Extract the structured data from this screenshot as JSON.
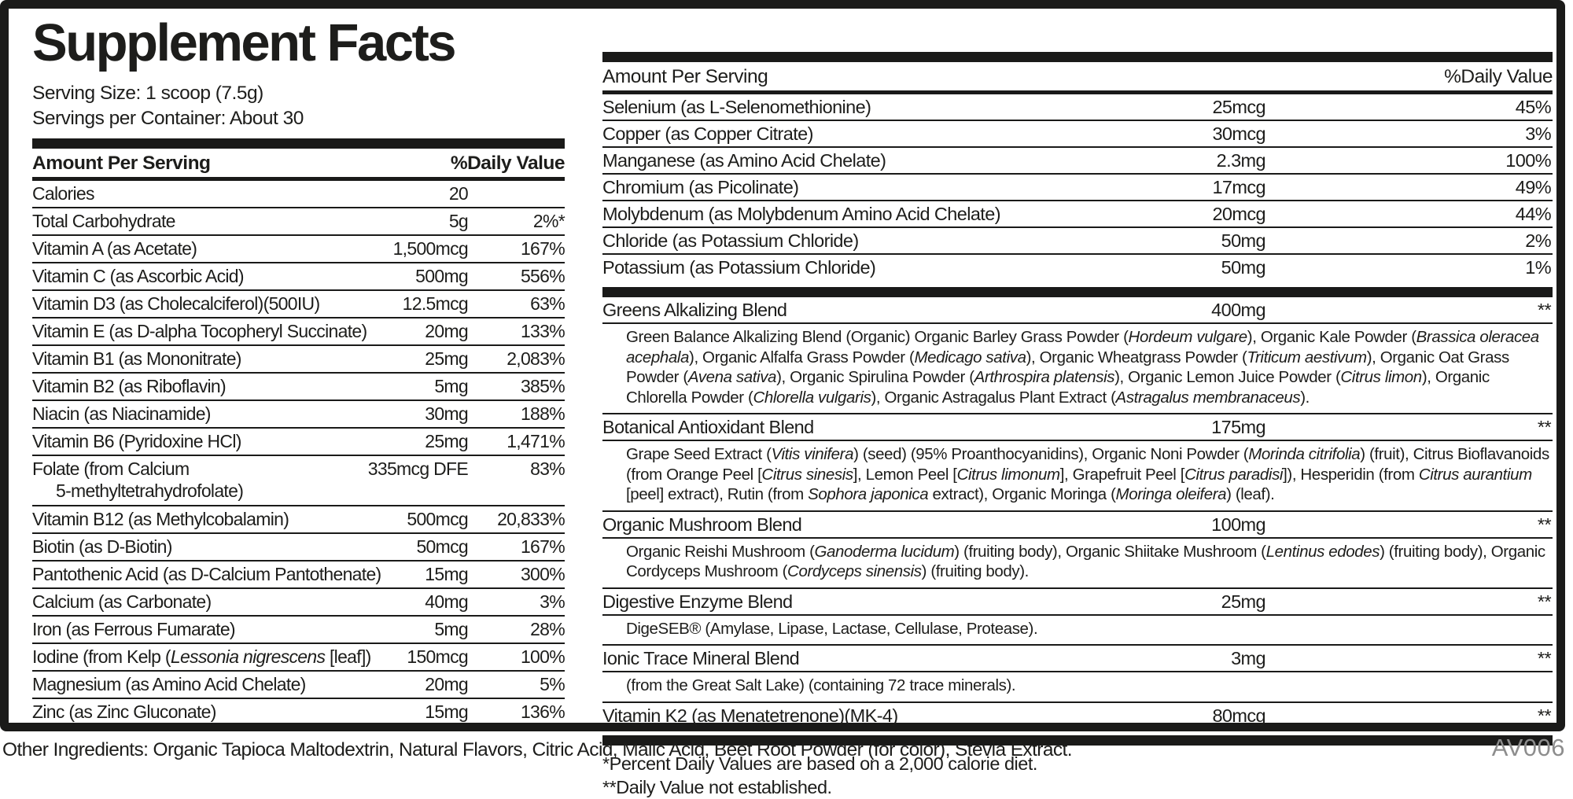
{
  "colors": {
    "ink": "#1a1a19",
    "code_gray": "#8d8d8d"
  },
  "panel": {
    "title": "Supplement Facts",
    "serving_size": "Serving Size: 1 scoop (7.5g)",
    "servings_per_container": "Servings per Container: About 30",
    "header": {
      "amount_label": "Amount Per Serving",
      "dv_label": "%Daily Value"
    }
  },
  "left_table": {
    "rows": [
      {
        "name": "Calories",
        "amount": "20",
        "dv": ""
      },
      {
        "name": "Total Carbohydrate",
        "amount": "5g",
        "dv": "2%*"
      },
      {
        "name": "Vitamin A (as Acetate)",
        "amount": "1,500mcg",
        "dv": "167%"
      },
      {
        "name": "Vitamin C (as Ascorbic Acid)",
        "amount": "500mg",
        "dv": "556%"
      },
      {
        "name": "Vitamin D3 (as Cholecalciferol)(500IU)",
        "amount": "12.5mcg",
        "dv": "63%"
      },
      {
        "name": "Vitamin E (as D-alpha Tocopheryl Succinate)",
        "amount": "20mg",
        "dv": "133%"
      },
      {
        "name": "Vitamin B1 (as Mononitrate)",
        "amount": "25mg",
        "dv": "2,083%"
      },
      {
        "name": "Vitamin B2 (as Riboflavin)",
        "amount": "5mg",
        "dv": "385%"
      },
      {
        "name": "Niacin (as Niacinamide)",
        "amount": "30mg",
        "dv": "188%"
      },
      {
        "name": "Vitamin B6 (Pyridoxine HCl)",
        "amount": "25mg",
        "dv": "1,471%"
      },
      {
        "name": "Folate (from Calcium",
        "name2": "5-methyltetrahydrofolate)",
        "amount": "335mcg DFE",
        "dv": "83%"
      },
      {
        "name": "Vitamin B12 (as Methylcobalamin)",
        "amount": "500mcg",
        "dv": "20,833%"
      },
      {
        "name": "Biotin (as D-Biotin)",
        "amount": "50mcg",
        "dv": "167%"
      },
      {
        "name": "Pantothenic Acid (as D-Calcium Pantothenate)",
        "amount": "15mg",
        "dv": "300%"
      },
      {
        "name": "Calcium (as Carbonate)",
        "amount": "40mg",
        "dv": "3%"
      },
      {
        "name": "Iron (as Ferrous Fumarate)",
        "amount": "5mg",
        "dv": "28%"
      },
      {
        "name": "Iodine (from Kelp (*Lessonia nigrescens* [leaf])",
        "amount": "150mcg",
        "dv": "100%"
      },
      {
        "name": "Magnesium (as Amino Acid Chelate)",
        "amount": "20mg",
        "dv": "5%"
      },
      {
        "name": "Zinc (as Zinc Gluconate)",
        "amount": "15mg",
        "dv": "136%"
      }
    ]
  },
  "right_table": {
    "rows": [
      {
        "name": "Selenium (as L-Selenomethionine)",
        "amount": "25mcg",
        "dv": "45%"
      },
      {
        "name": "Copper (as Copper Citrate)",
        "amount": "30mcg",
        "dv": "3%"
      },
      {
        "name": "Manganese (as Amino Acid Chelate)",
        "amount": "2.3mg",
        "dv": "100%"
      },
      {
        "name": "Chromium (as Picolinate)",
        "amount": "17mcg",
        "dv": "49%"
      },
      {
        "name": "Molybdenum (as Molybdenum Amino Acid Chelate)",
        "amount": "20mcg",
        "dv": "44%"
      },
      {
        "name": "Chloride (as Potassium Chloride)",
        "amount": "50mg",
        "dv": "2%"
      },
      {
        "name": "Potassium (as Potassium Chloride)",
        "amount": "50mg",
        "dv": "1%"
      }
    ],
    "blends": [
      {
        "name": "Greens Alkalizing Blend",
        "amount": "400mg",
        "dv": "**",
        "desc": "Green Balance Alkalizing Blend (Organic) Organic Barley Grass Powder (*Hordeum vulgare*), Organic Kale Powder (*Brassica oleracea acephala*), Organic Alfalfa Grass Powder (*Medicago sativa*), Organic Wheatgrass Powder (*Triticum aestivum*), Organic Oat Grass Powder (*Avena sativa*), Organic Spirulina Powder (*Arthrospira platensis*), Organic Lemon Juice Powder (*Citrus limon*), Organic Chlorella Powder (*Chlorella vulgaris*), Organic Astragalus Plant Extract (*Astragalus membranaceus*)."
      },
      {
        "name": "Botanical Antioxidant Blend",
        "amount": "175mg",
        "dv": "**",
        "desc": "Grape Seed Extract (*Vitis vinifera*) (seed) (95% Proanthocyanidins), Organic Noni Powder (*Morinda citrifolia*) (fruit), Citrus Bioflavanoids (from Orange Peel [*Citrus sinesis*], Lemon Peel [*Citrus limonum*], Grapefruit Peel [*Citrus paradisi*]), Hesperidin (from *Citrus aurantium* [peel] extract), Rutin (from *Sophora japonica* extract), Organic Moringa (*Moringa oleifera*) (leaf)."
      },
      {
        "name": "Organic Mushroom Blend",
        "amount": "100mg",
        "dv": "**",
        "desc": "Organic Reishi Mushroom (*Ganoderma lucidum*) (fruiting body), Organic Shiitake Mushroom (*Lentinus edodes*) (fruiting body), Organic Cordyceps Mushroom (*Cordyceps sinensis*) (fruiting body)."
      },
      {
        "name": "Digestive Enzyme Blend",
        "amount": "25mg",
        "dv": "**",
        "desc": "DigeSEB® (Amylase, Lipase, Lactase, Cellulase, Protease)."
      },
      {
        "name": "Ionic Trace Mineral Blend",
        "amount": "3mg",
        "dv": "**",
        "desc": "(from the Great Salt Lake) (containing 72 trace minerals)."
      },
      {
        "name": "Vitamin K2 (as Menatetrenone)(MK-4)",
        "amount": "80mcg",
        "dv": "**",
        "desc": null
      }
    ],
    "footnotes": [
      "*Percent Daily Values are based on a 2,000 calorie diet.",
      "**Daily Value not established."
    ]
  },
  "footer": {
    "other_ingredients": "Other Ingredients: Organic Tapioca Maltodextrin, Natural Flavors, Citric Acid, Malic Acid, Beet Root Powder (for color), Stevia Extract.",
    "code": "AV006"
  }
}
